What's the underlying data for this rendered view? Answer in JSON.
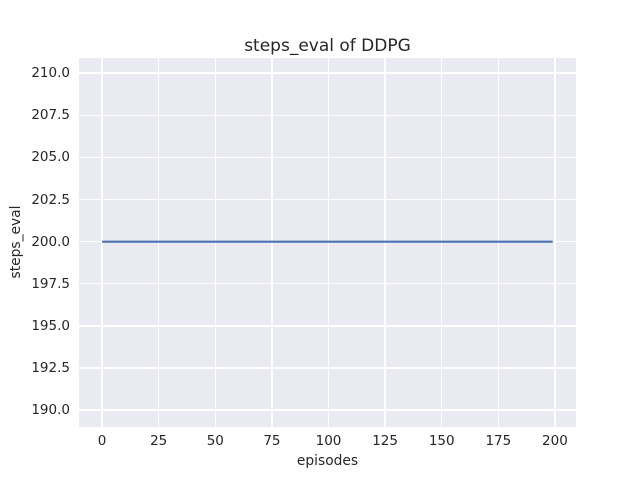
{
  "chart_data": {
    "type": "line",
    "title": "steps_eval of DDPG",
    "xlabel": "episodes",
    "ylabel": "steps_eval",
    "series": [
      {
        "name": "DDPG steps_eval",
        "color": "#4c72b0",
        "points": [
          [
            0,
            200.0
          ],
          [
            199,
            200.0
          ]
        ],
        "description_value": 200.0
      }
    ],
    "xtick_values": [
      0,
      25,
      50,
      75,
      100,
      125,
      150,
      175,
      200
    ],
    "xtick_labels": [
      "0",
      "25",
      "50",
      "75",
      "100",
      "125",
      "150",
      "175",
      "200"
    ],
    "ytick_values": [
      190.0,
      192.5,
      195.0,
      197.5,
      200.0,
      202.5,
      205.0,
      207.5,
      210.0
    ],
    "ytick_labels": [
      "190.0",
      "192.5",
      "195.0",
      "197.5",
      "200.0",
      "202.5",
      "205.0",
      "207.5",
      "210.0"
    ],
    "xlim": [
      -10.2,
      209.3
    ],
    "ylim": [
      189.0,
      210.9
    ],
    "grid": true,
    "legend": "none",
    "colors": {
      "plot_background": "#eaeaf2",
      "gridline": "#ffffff",
      "figure_background": "#ffffff",
      "text": "#262626",
      "line": "#4c72b0"
    }
  }
}
